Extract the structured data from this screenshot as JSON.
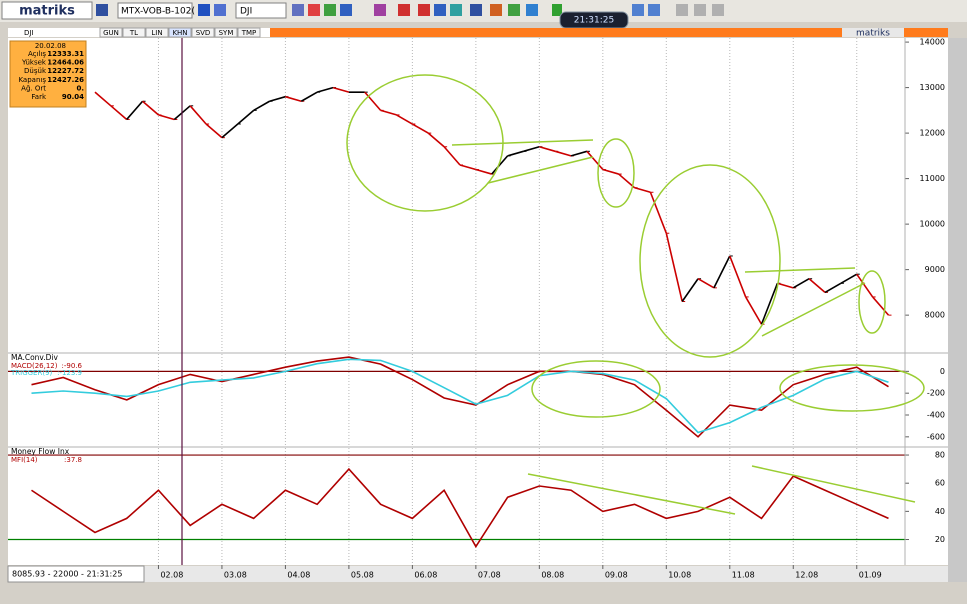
{
  "toolbar": {
    "logo": "matriks",
    "symbol_list": "MTX-VOB-B-102(",
    "symbol": "DJI",
    "clock": "21:31:25"
  },
  "chart_header": {
    "symbol": "DJI",
    "tabs": [
      "GUN",
      "TL",
      "LIN",
      "KHN",
      "SVD",
      "SYM",
      "TMP"
    ],
    "brand": "matriks"
  },
  "info_box": {
    "date": "20.02.08",
    "rows": [
      [
        "Açılış",
        "12333.31"
      ],
      [
        "Yüksek",
        "12464.06"
      ],
      [
        "Düşük",
        "12227.72"
      ],
      [
        "Kapanış",
        "12427.26"
      ],
      [
        "Ağ. Ort",
        "0."
      ],
      [
        "Fark",
        "90.04"
      ]
    ]
  },
  "status": "8085.93 - 22000 - 21:31:25",
  "chart_data": [
    {
      "type": "line",
      "xlim": [
        -0.37,
        13.76
      ],
      "ylim": [
        7190,
        14090
      ],
      "yticks": [
        14000,
        13000,
        12000,
        11000,
        10000,
        9000,
        8000
      ],
      "up_color": "#000000",
      "down_color": "#cc0000",
      "x": [
        1,
        1.25,
        1.5,
        1.75,
        2,
        2.25,
        2.5,
        2.75,
        3,
        3.25,
        3.5,
        3.75,
        4,
        4.25,
        4.5,
        4.75,
        5,
        5.25,
        5.5,
        5.75,
        6,
        6.25,
        6.5,
        6.75,
        7,
        7.25,
        7.5,
        7.75,
        8,
        8.25,
        8.5,
        8.75,
        9,
        9.25,
        9.5,
        9.75,
        10,
        10.25,
        10.5,
        10.75,
        11,
        11.25,
        11.5,
        11.75,
        12,
        12.25,
        12.5,
        12.75,
        13,
        13.25,
        13.5
      ],
      "values": [
        12900,
        12600,
        12300,
        12700,
        12400,
        12300,
        12600,
        12200,
        11900,
        12200,
        12500,
        12700,
        12800,
        12700,
        12900,
        13000,
        12900,
        12900,
        12500,
        12400,
        12200,
        12000,
        11700,
        11300,
        11200,
        11100,
        11500,
        11600,
        11700,
        11600,
        11500,
        11600,
        11200,
        11100,
        10800,
        10700,
        9800,
        8300,
        8800,
        8600,
        9300,
        8400,
        7800,
        8700,
        8600,
        8800,
        8500,
        8700,
        8900,
        8400,
        8000
      ]
    },
    {
      "type": "line",
      "title": "MA.Conv.Div",
      "xlim": [
        -0.37,
        13.76
      ],
      "ylim": [
        -684,
        159
      ],
      "yticks": [
        0,
        -200,
        -400,
        -600
      ],
      "reference_lines": [
        {
          "value": 0,
          "color": "#800000"
        }
      ],
      "x": [
        0,
        0.5,
        1,
        1.5,
        2,
        2.5,
        3,
        3.5,
        4,
        4.5,
        5,
        5.5,
        6,
        6.5,
        7,
        7.5,
        8,
        8.5,
        9,
        9.5,
        10,
        10.5,
        11,
        11.5,
        12,
        12.5,
        13,
        13.5
      ],
      "series": [
        {
          "name": "MACD(26,12)",
          "last_label": ":-90.6",
          "color": "#b00000",
          "values": [
            -122,
            -56,
            -169,
            -262,
            -122,
            -28,
            -94,
            -28,
            38,
            94,
            131,
            66,
            -75,
            -244,
            -309,
            -122,
            0,
            0,
            -28,
            -122,
            -356,
            -600,
            -309,
            -356,
            -122,
            -28,
            38,
            -141
          ]
        },
        {
          "name": "TRIGGER(9)",
          "last_label": ":-123.9",
          "color": "#33ccdd",
          "values": [
            -200,
            -180,
            -200,
            -230,
            -180,
            -100,
            -80,
            -60,
            0,
            70,
            110,
            100,
            0,
            -150,
            -300,
            -220,
            -40,
            0,
            -20,
            -80,
            -250,
            -560,
            -470,
            -330,
            -220,
            -70,
            0,
            -100
          ]
        }
      ]
    },
    {
      "type": "line",
      "title": "Money Flow Inx",
      "xlim": [
        -0.37,
        13.76
      ],
      "ylim": [
        1.9,
        85
      ],
      "yticks": [
        80,
        60,
        40,
        20
      ],
      "reference_lines": [
        {
          "value": 80,
          "color": "#800000"
        },
        {
          "value": 20,
          "color": "#008000"
        }
      ],
      "xticks": [
        {
          "value": 2,
          "label": "02.08"
        },
        {
          "value": 3,
          "label": "03.08"
        },
        {
          "value": 4,
          "label": "04.08"
        },
        {
          "value": 5,
          "label": "05.08"
        },
        {
          "value": 6,
          "label": "06.08"
        },
        {
          "value": 7,
          "label": "07.08"
        },
        {
          "value": 8,
          "label": "08.08"
        },
        {
          "value": 9,
          "label": "09.08"
        },
        {
          "value": 10,
          "label": "10.08"
        },
        {
          "value": 11,
          "label": "11.08"
        },
        {
          "value": 12,
          "label": "12.08"
        },
        {
          "value": 13,
          "label": "01.09"
        }
      ],
      "x": [
        0,
        0.5,
        1,
        1.5,
        2,
        2.5,
        3,
        3.5,
        4,
        4.5,
        5,
        5.5,
        6,
        6.5,
        7,
        7.5,
        8,
        8.5,
        9,
        9.5,
        10,
        10.5,
        11,
        11.5,
        12,
        12.5,
        13,
        13.5
      ],
      "series": [
        {
          "name": "MFI(14)",
          "last_label": ":37.8",
          "color": "#b00000",
          "values": [
            55,
            40,
            25,
            35,
            55,
            30,
            45,
            35,
            55,
            45,
            70,
            45,
            35,
            55,
            15,
            50,
            58,
            55,
            40,
            45,
            35,
            40,
            50,
            35,
            65,
            55,
            45,
            35
          ]
        }
      ]
    }
  ]
}
